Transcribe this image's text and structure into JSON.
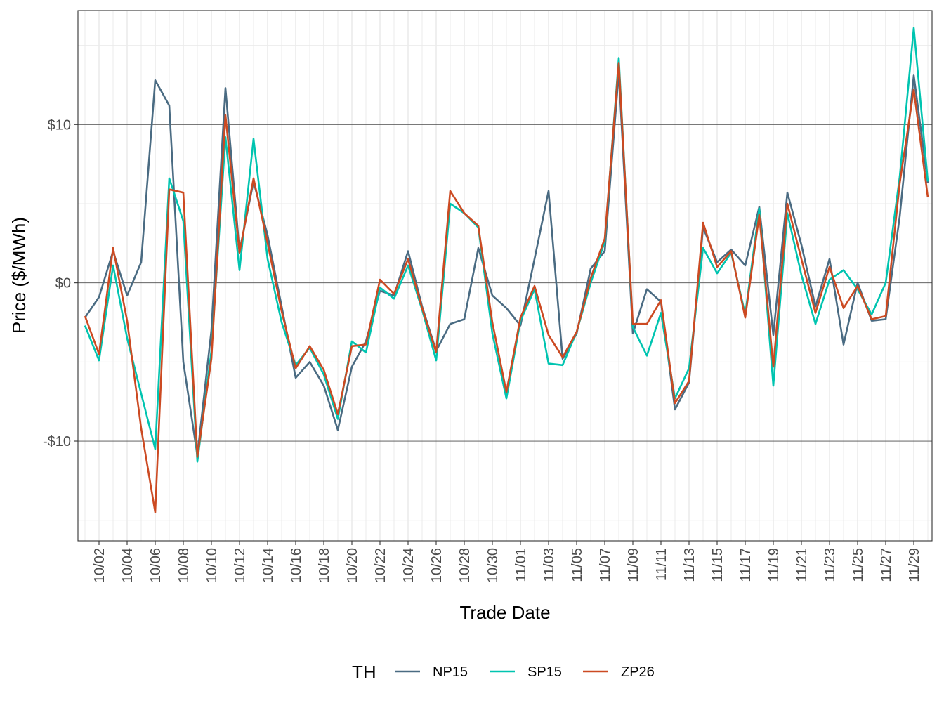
{
  "chart_data": {
    "type": "line",
    "xlabel": "Trade Date",
    "ylabel": "Price ($/MWh)",
    "ylim": [
      -16.3,
      17.2
    ],
    "y_ticks": [
      {
        "value": -10,
        "label": "-$10"
      },
      {
        "value": 0,
        "label": "$0"
      },
      {
        "value": 10,
        "label": "$10"
      }
    ],
    "x_tick_labels": [
      "10/02",
      "10/04",
      "10/06",
      "10/08",
      "10/10",
      "10/12",
      "10/14",
      "10/16",
      "10/18",
      "10/20",
      "10/22",
      "10/24",
      "10/26",
      "10/28",
      "10/30",
      "11/01",
      "11/03",
      "11/05",
      "11/07",
      "11/09",
      "11/11",
      "11/13",
      "11/15",
      "11/17",
      "11/19",
      "11/21",
      "11/23",
      "11/25",
      "11/27",
      "11/29"
    ],
    "x_dates": [
      "10/01",
      "10/02",
      "10/03",
      "10/04",
      "10/05",
      "10/06",
      "10/07",
      "10/08",
      "10/09",
      "10/10",
      "10/11",
      "10/12",
      "10/13",
      "10/14",
      "10/15",
      "10/16",
      "10/17",
      "10/18",
      "10/19",
      "10/20",
      "10/21",
      "10/22",
      "10/23",
      "10/24",
      "10/25",
      "10/26",
      "10/27",
      "10/28",
      "10/29",
      "10/30",
      "10/31",
      "11/01",
      "11/02",
      "11/03",
      "11/04",
      "11/05",
      "11/06",
      "11/07",
      "11/08",
      "11/09",
      "11/10",
      "11/11",
      "11/12",
      "11/13",
      "11/14",
      "11/15",
      "11/16",
      "11/17",
      "11/18",
      "11/19",
      "11/20",
      "11/21",
      "11/22",
      "11/23",
      "11/24",
      "11/25",
      "11/26",
      "11/27",
      "11/28",
      "11/29",
      "11/30"
    ],
    "grid": true,
    "legend_position": "bottom",
    "legend_title": "TH",
    "series": [
      {
        "name": "NP15",
        "color": "#4a6b82",
        "values": [
          -2.2,
          -0.9,
          2.0,
          -0.8,
          1.3,
          12.8,
          11.2,
          -5.0,
          -10.9,
          -3.0,
          12.3,
          2.0,
          6.4,
          3.0,
          -1.5,
          -6.0,
          -5.0,
          -6.5,
          -9.3,
          -5.3,
          -3.7,
          -0.5,
          -0.8,
          2.0,
          -1.5,
          -4.3,
          -2.6,
          -2.3,
          2.2,
          -0.8,
          -1.6,
          -2.7,
          1.5,
          5.8,
          -4.8,
          -3.2,
          0.9,
          2.0,
          13.3,
          -3.2,
          -0.4,
          -1.2,
          -8.0,
          -6.3,
          3.5,
          1.3,
          2.1,
          1.1,
          4.8,
          -3.3,
          5.7,
          2.4,
          -1.5,
          1.5,
          -3.9,
          0.0,
          -2.4,
          -2.3,
          4.2,
          13.1,
          6.3
        ]
      },
      {
        "name": "SP15",
        "color": "#00c4b0",
        "values": [
          -2.7,
          -4.9,
          1.1,
          -3.5,
          -7.0,
          -10.5,
          6.6,
          3.9,
          -11.3,
          -4.3,
          9.2,
          0.8,
          9.1,
          1.5,
          -2.5,
          -5.2,
          -4.1,
          -5.8,
          -8.6,
          -3.7,
          -4.4,
          -0.3,
          -1.0,
          1.1,
          -1.7,
          -4.9,
          5.0,
          4.4,
          3.5,
          -3.2,
          -7.3,
          -2.4,
          -0.4,
          -5.1,
          -5.2,
          -3.1,
          0.0,
          2.6,
          14.2,
          -2.8,
          -4.6,
          -1.9,
          -7.3,
          -5.4,
          2.2,
          0.6,
          1.9,
          -2.0,
          4.7,
          -6.5,
          4.4,
          0.5,
          -2.6,
          0.2,
          0.8,
          -0.4,
          -2.0,
          0.0,
          6.7,
          16.1,
          6.4
        ]
      },
      {
        "name": "ZP26",
        "color": "#cc4a22",
        "values": [
          -2.1,
          -4.5,
          2.2,
          -2.4,
          -9.2,
          -14.5,
          5.9,
          5.7,
          -11.0,
          -4.8,
          10.6,
          1.9,
          6.6,
          2.5,
          -1.8,
          -5.4,
          -4.0,
          -5.5,
          -8.3,
          -4.0,
          -3.9,
          0.2,
          -0.7,
          1.5,
          -1.6,
          -4.4,
          5.8,
          4.4,
          3.6,
          -2.5,
          -6.9,
          -2.2,
          -0.2,
          -3.3,
          -4.7,
          -3.1,
          0.3,
          2.8,
          13.9,
          -2.6,
          -2.6,
          -1.1,
          -7.6,
          -6.2,
          3.8,
          1.0,
          2.0,
          -2.2,
          4.3,
          -5.3,
          5.0,
          1.5,
          -1.9,
          1.0,
          -1.6,
          -0.2,
          -2.3,
          -2.1,
          6.3,
          12.2,
          5.4
        ]
      }
    ]
  }
}
